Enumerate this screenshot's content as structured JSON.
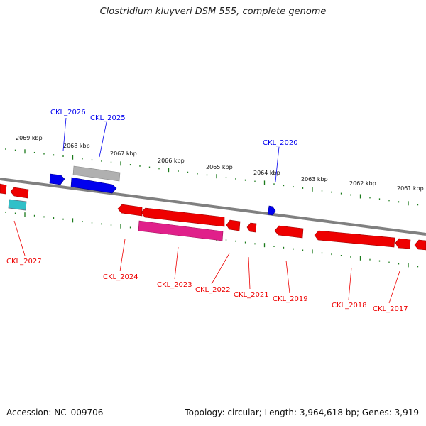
{
  "title": "Clostridium kluyveri DSM 555, complete genome",
  "footer": {
    "accession": "Accession: NC_009706",
    "summary": "Topology: circular; Length: 3,964,618 bp; Genes: 3,919"
  },
  "colors": {
    "backbone": "#808080",
    "ticks": "#1a7a1a",
    "plus_strand": "#0000ee",
    "minus_strand": "#ee0000",
    "rna": "#e0208a",
    "pseudo": "#b0b0b0",
    "cyan_feature": "#30c0c8"
  },
  "scale": {
    "labels": [
      "2069 kbp",
      "2068 kbp",
      "2067 kbp",
      "2066 kbp",
      "2065 kbp",
      "2064 kbp",
      "2063 kbp",
      "2062 kbp",
      "2061 kbp"
    ]
  },
  "genes": {
    "top": [
      "CKL_2026",
      "CKL_2025",
      "CKL_2020"
    ],
    "bottom": [
      "CKL_2027",
      "CKL_2024",
      "CKL_2023",
      "CKL_2022",
      "CKL_2021",
      "CKL_2019",
      "CKL_2018",
      "CKL_2017"
    ]
  }
}
